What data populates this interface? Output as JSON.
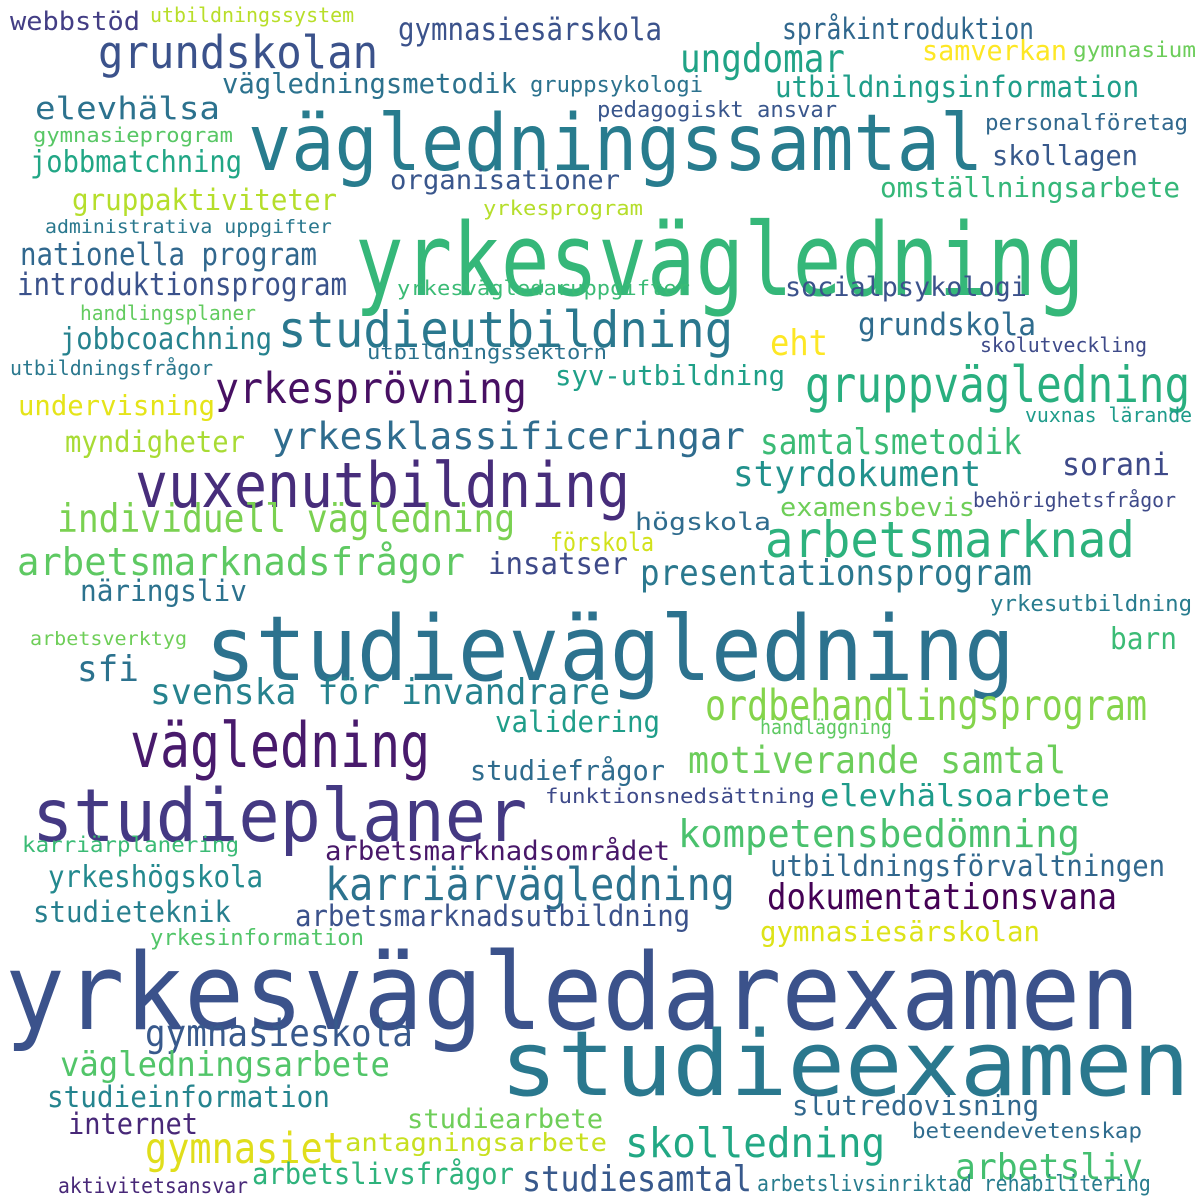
{
  "words": [
    {
      "text": "yrkesvägledarexamen",
      "color": "#3b528b"
    },
    {
      "text": "studievägledning",
      "color": "#2c728e"
    },
    {
      "text": "yrkesvägledning",
      "color": "#35b779"
    },
    {
      "text": "studieexamen",
      "color": "#2a788e"
    },
    {
      "text": "vägledningssamtal",
      "color": "#287c8e"
    },
    {
      "text": "studieplaner",
      "color": "#443983"
    },
    {
      "text": "vuxenutbildning",
      "color": "#472d7b"
    },
    {
      "text": "vägledning",
      "color": "#481a6c"
    },
    {
      "text": "studieutbildning",
      "color": "#2a788e"
    },
    {
      "text": "grundskolan",
      "color": "#3b528b"
    },
    {
      "text": "gruppvägledning",
      "color": "#29af7f"
    },
    {
      "text": "arbetsmarknad",
      "color": "#2db27d"
    },
    {
      "text": "karriärvägledning",
      "color": "#2c728e"
    },
    {
      "text": "yrkesprövning",
      "color": "#471063"
    },
    {
      "text": "ordbehandlingsprogram",
      "color": "#84d44b"
    },
    {
      "text": "individuell vägledning",
      "color": "#7ad151"
    },
    {
      "text": "arbetsmarknadsfrågor",
      "color": "#5ec962"
    },
    {
      "text": "kompetensbedömning",
      "color": "#4ac16d"
    },
    {
      "text": "ungdomar",
      "color": "#20a386"
    },
    {
      "text": "skolledning",
      "color": "#22a884"
    },
    {
      "text": "gymnasiet",
      "color": "#e0de1b"
    },
    {
      "text": "motiverande samtal",
      "color": "#6ccd5a"
    },
    {
      "text": "presentationsprogram",
      "color": "#2a788e"
    },
    {
      "text": "yrkesklassificeringar",
      "color": "#2f6c8e"
    },
    {
      "text": "samtalsmetodik",
      "color": "#3bbb75"
    },
    {
      "text": "gymnasieskola",
      "color": "#38598c"
    },
    {
      "text": "svenska för invandrare",
      "color": "#26828e"
    },
    {
      "text": "styrdokument",
      "color": "#21918c"
    },
    {
      "text": "grundskola",
      "color": "#2f6c8e"
    },
    {
      "text": "arbetsliv",
      "color": "#44bf70"
    },
    {
      "text": "elevhälsa",
      "color": "#2c728e"
    },
    {
      "text": "sfi",
      "color": "#2c728e"
    },
    {
      "text": "vägledningsarbete",
      "color": "#52c569"
    },
    {
      "text": "dokumentationsvana",
      "color": "#440154"
    },
    {
      "text": "studiesamtal",
      "color": "#38598c"
    },
    {
      "text": "sorani",
      "color": "#3e4a89"
    },
    {
      "text": "eht",
      "color": "#fde725"
    },
    {
      "text": "vägledningsmetodik",
      "color": "#2c728e"
    },
    {
      "text": "arbetsmarknadsutbildning",
      "color": "#3b528b"
    },
    {
      "text": "elevhälsoarbete",
      "color": "#1e9b8a"
    },
    {
      "text": "utbildningsförvaltningen",
      "color": "#31688e"
    },
    {
      "text": "arbetsmarknadsområdet",
      "color": "#481769"
    },
    {
      "text": "yrkeshögskola",
      "color": "#23898e"
    },
    {
      "text": "studieteknik",
      "color": "#277f8e"
    },
    {
      "text": "nationella program",
      "color": "#31688e"
    },
    {
      "text": "introduktionsprogram",
      "color": "#3b528b"
    },
    {
      "text": "jobbcoachning",
      "color": "#26828e"
    },
    {
      "text": "gruppaktiviteter",
      "color": "#b5de2b"
    },
    {
      "text": "jobbmatchning",
      "color": "#21a685"
    },
    {
      "text": "gymnasiesärskola",
      "color": "#3b528b"
    },
    {
      "text": "språkintroduktion",
      "color": "#31688e"
    },
    {
      "text": "utbildningsinformation",
      "color": "#1f9e89"
    },
    {
      "text": "insatser",
      "color": "#3e4a89"
    },
    {
      "text": "studieinformation",
      "color": "#25848e"
    },
    {
      "text": "internet",
      "color": "#482878"
    },
    {
      "text": "slutredovisning",
      "color": "#31688e"
    },
    {
      "text": "studiefrågor",
      "color": "#2f6c8e"
    },
    {
      "text": "omställningsarbete",
      "color": "#35b779"
    },
    {
      "text": "syv-utbildning",
      "color": "#1fa088"
    },
    {
      "text": "myndigheter",
      "color": "#a8db34"
    },
    {
      "text": "validering",
      "color": "#1f9e89"
    },
    {
      "text": "näringsliv",
      "color": "#2c728e"
    },
    {
      "text": "organisationer",
      "color": "#39568c"
    },
    {
      "text": "skollagen",
      "color": "#38598c"
    },
    {
      "text": "socialpsykologi",
      "color": "#3b528b"
    },
    {
      "text": "studiearbete",
      "color": "#6ece58"
    },
    {
      "text": "antagningsarbete",
      "color": "#c8e020"
    },
    {
      "text": "arbetslivsfrågor",
      "color": "#2eb37c"
    },
    {
      "text": "gymnasiesärskolan",
      "color": "#dde318"
    },
    {
      "text": "undervisning",
      "color": "#e5e419"
    },
    {
      "text": "förskola",
      "color": "#d2e21b"
    },
    {
      "text": "examensbevis",
      "color": "#6ece58"
    },
    {
      "text": "barn",
      "color": "#3bbb75"
    },
    {
      "text": "samverkan",
      "color": "#fde725"
    },
    {
      "text": "webbstöd",
      "color": "#433e85"
    },
    {
      "text": "utbildningssystem",
      "color": "#b8de29"
    },
    {
      "text": "gymnasium",
      "color": "#6ccd5a"
    },
    {
      "text": "gruppsykologi",
      "color": "#2c728e"
    },
    {
      "text": "pedagogiskt ansvar",
      "color": "#39568c"
    },
    {
      "text": "personalföretag",
      "color": "#31688e"
    },
    {
      "text": "gymnasieprogram",
      "color": "#58c765"
    },
    {
      "text": "administrativa uppgifter",
      "color": "#2a788e"
    },
    {
      "text": "yrkesprogram",
      "color": "#b5de2b"
    },
    {
      "text": "yrkesvägledaruppgifter",
      "color": "#3bbb75"
    },
    {
      "text": "handlingsplaner",
      "color": "#63cb5f"
    },
    {
      "text": "utbildningssektorn",
      "color": "#2c728e"
    },
    {
      "text": "utbildningsfrågor",
      "color": "#2a788e"
    },
    {
      "text": "skolutveckling",
      "color": "#3e4a89"
    },
    {
      "text": "vuxnas lärande",
      "color": "#1e9b8a"
    },
    {
      "text": "behörighetsfrågor",
      "color": "#3e4a89"
    },
    {
      "text": "högskola",
      "color": "#2f6c8e"
    },
    {
      "text": "yrkesutbildning",
      "color": "#287c8e"
    },
    {
      "text": "arbetsverktyg",
      "color": "#6ece58"
    },
    {
      "text": "handläggning",
      "color": "#5ec962"
    },
    {
      "text": "funktionsnedsättning",
      "color": "#3e4a89"
    },
    {
      "text": "karriärplanering",
      "color": "#3bbb75"
    },
    {
      "text": "yrkesinformation",
      "color": "#52c569"
    },
    {
      "text": "beteendevetenskap",
      "color": "#2f6c8e"
    },
    {
      "text": "aktivitetsansvar",
      "color": "#482878"
    },
    {
      "text": "arbetslivsinriktad rehabilitering",
      "color": "#287c8e"
    }
  ]
}
